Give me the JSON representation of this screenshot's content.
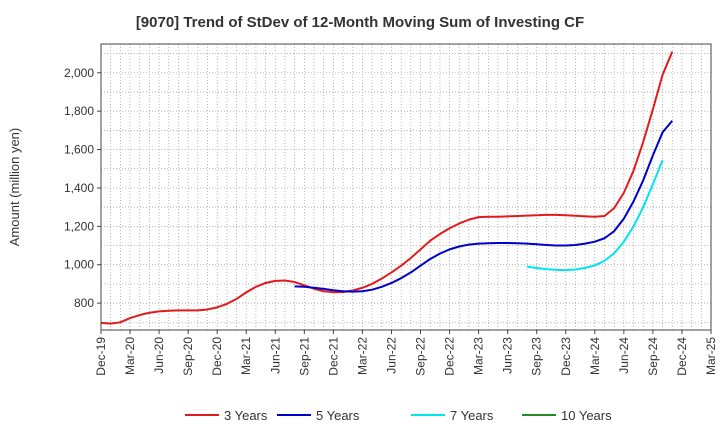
{
  "chart_data": {
    "type": "line",
    "title": "[9070]  Trend of StDev of 12-Month Moving Sum of Investing CF",
    "xlabel": "",
    "ylabel": "Amount (million yen)",
    "ylim": [
      660,
      2150
    ],
    "yticks": [
      800,
      1000,
      1200,
      1400,
      1600,
      1800,
      2000
    ],
    "ytick_labels": [
      "800",
      "1,000",
      "1,200",
      "1,400",
      "1,600",
      "1,800",
      "2,000"
    ],
    "x_range": [
      "2019-12",
      "2025-03"
    ],
    "xtick_labels": [
      "Dec-19",
      "Mar-20",
      "Jun-20",
      "Sep-20",
      "Dec-20",
      "Mar-21",
      "Jun-21",
      "Sep-21",
      "Dec-21",
      "Mar-22",
      "Jun-22",
      "Sep-22",
      "Dec-22",
      "Mar-23",
      "Jun-23",
      "Sep-23",
      "Dec-23",
      "Mar-24",
      "Jun-24",
      "Sep-24",
      "Dec-24",
      "Mar-25"
    ],
    "grid": true,
    "legend_position": "bottom",
    "series": [
      {
        "name": "3 Years",
        "color": "#e31a1c",
        "points": [
          [
            "2019-12",
            697
          ],
          [
            "2020-01",
            693
          ],
          [
            "2020-02",
            700
          ],
          [
            "2020-03",
            722
          ],
          [
            "2020-04",
            738
          ],
          [
            "2020-05",
            750
          ],
          [
            "2020-06",
            757
          ],
          [
            "2020-07",
            760
          ],
          [
            "2020-08",
            762
          ],
          [
            "2020-09",
            762
          ],
          [
            "2020-10",
            762
          ],
          [
            "2020-11",
            767
          ],
          [
            "2020-12",
            778
          ],
          [
            "2021-01",
            796
          ],
          [
            "2021-02",
            822
          ],
          [
            "2021-03",
            856
          ],
          [
            "2021-04",
            885
          ],
          [
            "2021-05",
            905
          ],
          [
            "2021-06",
            916
          ],
          [
            "2021-07",
            918
          ],
          [
            "2021-08",
            910
          ],
          [
            "2021-09",
            893
          ],
          [
            "2021-10",
            875
          ],
          [
            "2021-11",
            862
          ],
          [
            "2021-12",
            857
          ],
          [
            "2022-01",
            858
          ],
          [
            "2022-02",
            866
          ],
          [
            "2022-03",
            880
          ],
          [
            "2022-04",
            900
          ],
          [
            "2022-05",
            928
          ],
          [
            "2022-06",
            960
          ],
          [
            "2022-07",
            995
          ],
          [
            "2022-08",
            1035
          ],
          [
            "2022-09",
            1080
          ],
          [
            "2022-10",
            1125
          ],
          [
            "2022-11",
            1160
          ],
          [
            "2022-12",
            1190
          ],
          [
            "2023-01",
            1215
          ],
          [
            "2023-02",
            1235
          ],
          [
            "2023-03",
            1248
          ],
          [
            "2023-04",
            1250
          ],
          [
            "2023-05",
            1250
          ],
          [
            "2023-06",
            1252
          ],
          [
            "2023-07",
            1254
          ],
          [
            "2023-08",
            1256
          ],
          [
            "2023-09",
            1258
          ],
          [
            "2023-10",
            1260
          ],
          [
            "2023-11",
            1260
          ],
          [
            "2023-12",
            1258
          ],
          [
            "2024-01",
            1255
          ],
          [
            "2024-02",
            1252
          ],
          [
            "2024-03",
            1250
          ],
          [
            "2024-04",
            1254
          ],
          [
            "2024-05",
            1295
          ],
          [
            "2024-06",
            1375
          ],
          [
            "2024-07",
            1490
          ],
          [
            "2024-08",
            1640
          ],
          [
            "2024-09",
            1810
          ],
          [
            "2024-10",
            1990
          ],
          [
            "2024-11",
            2110
          ]
        ]
      },
      {
        "name": "5 Years",
        "color": "#0000cc",
        "points": [
          [
            "2021-08",
            887
          ],
          [
            "2021-09",
            885
          ],
          [
            "2021-10",
            880
          ],
          [
            "2021-11",
            874
          ],
          [
            "2021-12",
            867
          ],
          [
            "2022-01",
            862
          ],
          [
            "2022-02",
            860
          ],
          [
            "2022-03",
            862
          ],
          [
            "2022-04",
            870
          ],
          [
            "2022-05",
            885
          ],
          [
            "2022-06",
            905
          ],
          [
            "2022-07",
            930
          ],
          [
            "2022-08",
            960
          ],
          [
            "2022-09",
            995
          ],
          [
            "2022-10",
            1030
          ],
          [
            "2022-11",
            1058
          ],
          [
            "2022-12",
            1080
          ],
          [
            "2023-01",
            1095
          ],
          [
            "2023-02",
            1105
          ],
          [
            "2023-03",
            1110
          ],
          [
            "2023-04",
            1112
          ],
          [
            "2023-05",
            1113
          ],
          [
            "2023-06",
            1113
          ],
          [
            "2023-07",
            1112
          ],
          [
            "2023-08",
            1110
          ],
          [
            "2023-09",
            1107
          ],
          [
            "2023-10",
            1103
          ],
          [
            "2023-11",
            1100
          ],
          [
            "2023-12",
            1100
          ],
          [
            "2024-01",
            1103
          ],
          [
            "2024-02",
            1110
          ],
          [
            "2024-03",
            1120
          ],
          [
            "2024-04",
            1138
          ],
          [
            "2024-05",
            1175
          ],
          [
            "2024-06",
            1240
          ],
          [
            "2024-07",
            1330
          ],
          [
            "2024-08",
            1440
          ],
          [
            "2024-09",
            1570
          ],
          [
            "2024-10",
            1690
          ],
          [
            "2024-11",
            1750
          ]
        ]
      },
      {
        "name": "7 Years",
        "color": "#00e5ee",
        "points": [
          [
            "2023-08",
            990
          ],
          [
            "2023-09",
            983
          ],
          [
            "2023-10",
            977
          ],
          [
            "2023-11",
            973
          ],
          [
            "2023-12",
            972
          ],
          [
            "2024-01",
            975
          ],
          [
            "2024-02",
            983
          ],
          [
            "2024-03",
            997
          ],
          [
            "2024-04",
            1020
          ],
          [
            "2024-05",
            1060
          ],
          [
            "2024-06",
            1120
          ],
          [
            "2024-07",
            1200
          ],
          [
            "2024-08",
            1300
          ],
          [
            "2024-09",
            1420
          ],
          [
            "2024-10",
            1545
          ]
        ]
      },
      {
        "name": "10 Years",
        "color": "#228b22",
        "points": []
      }
    ]
  }
}
